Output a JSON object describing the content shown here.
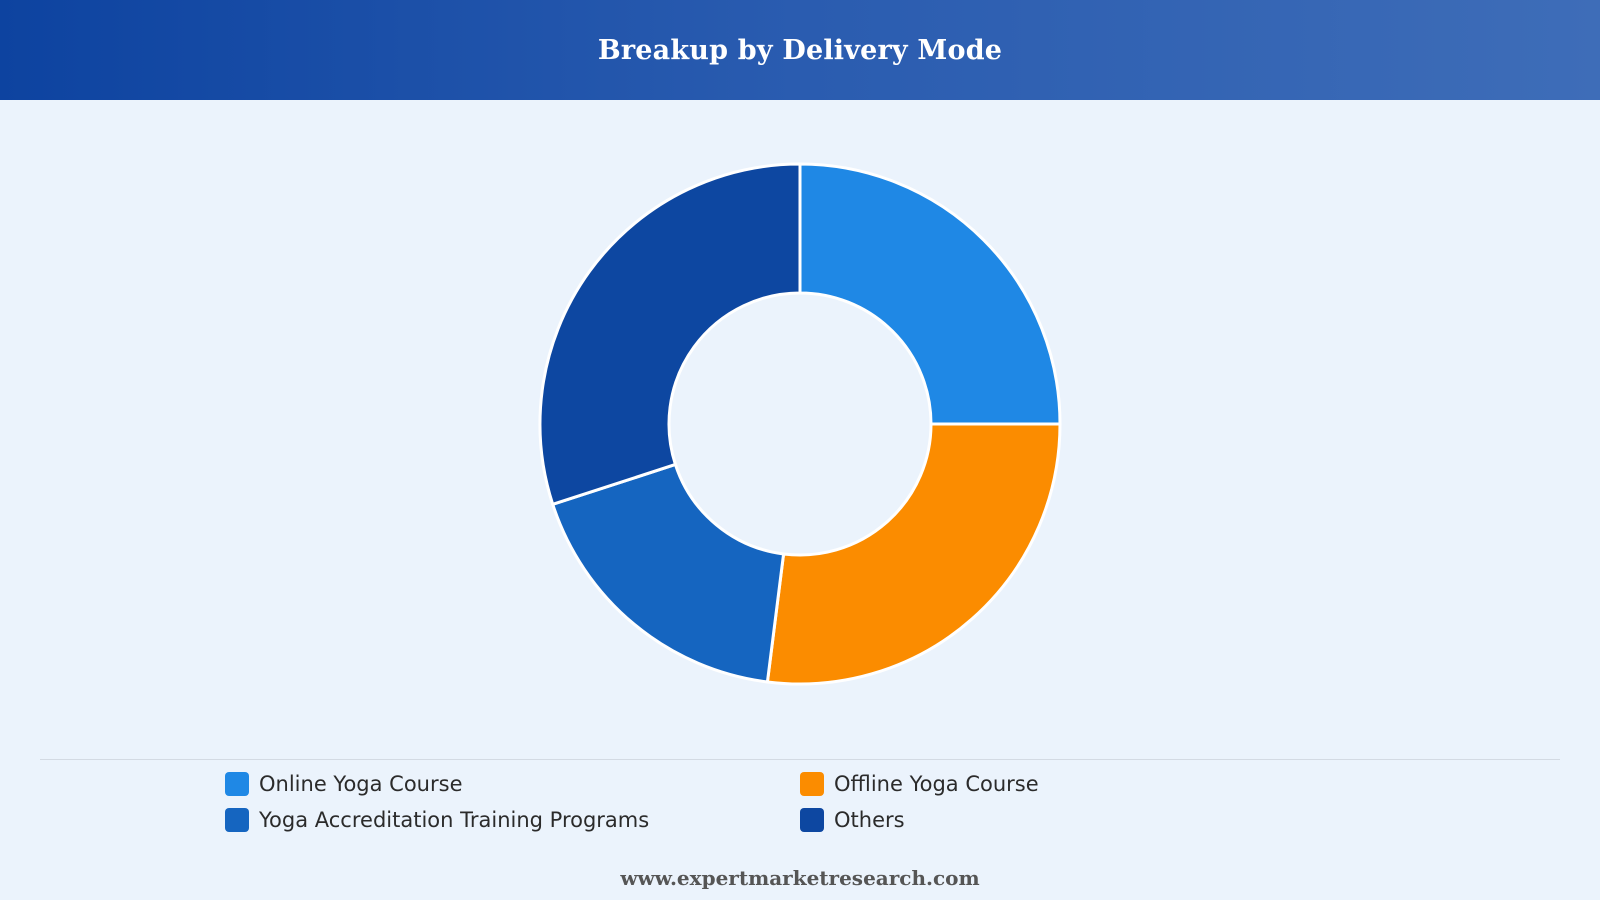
{
  "header": {
    "title": "Breakup by Delivery Mode"
  },
  "chart_data": {
    "type": "pie",
    "donut": true,
    "title": "Breakup by Delivery Mode",
    "categories": [
      "Online Yoga Course",
      "Offline Yoga Course",
      "Yoga Accreditation Training Programs",
      "Others"
    ],
    "values": [
      25,
      27,
      18,
      30
    ],
    "colors": [
      "#1f88e5",
      "#fb8c00",
      "#1565c0",
      "#0d47a1"
    ],
    "legend_position": "bottom"
  },
  "footer": {
    "text": "www.expertmarketresearch.com"
  }
}
